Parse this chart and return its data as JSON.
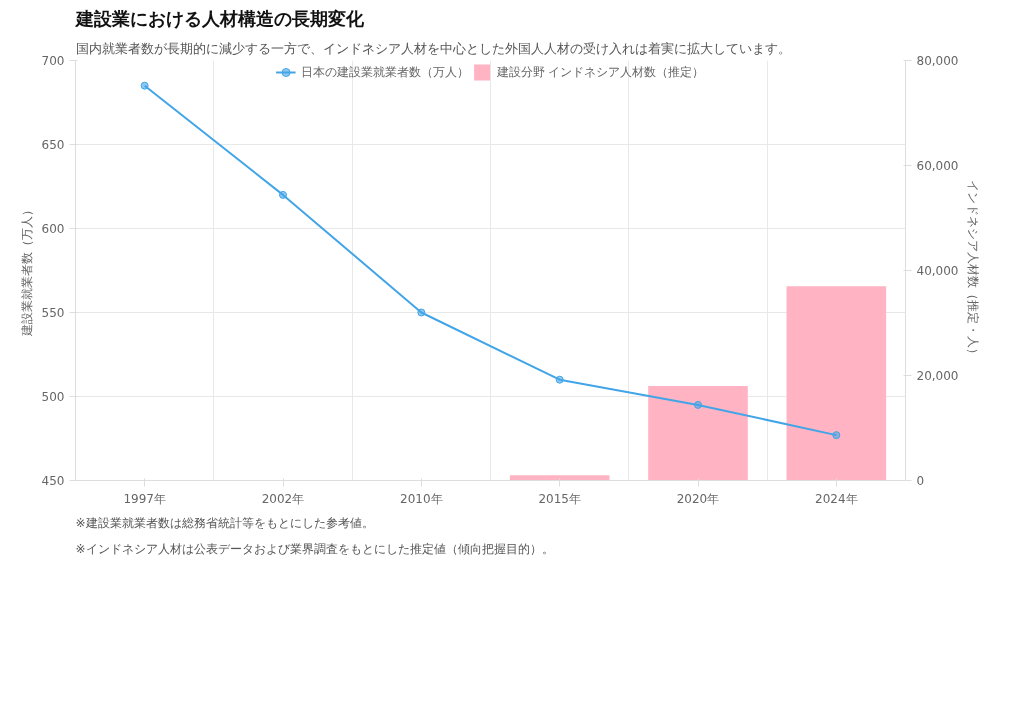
{
  "chart_data": {
    "type": "bar",
    "title": "建設業における人材構造の長期変化",
    "subtitle": "国内就業者数が長期的に減少する一方で、インドネシア人材を中心とした外国人人材の受け入れは着実に拡大しています。",
    "categories": [
      "1997年",
      "2002年",
      "2010年",
      "2015年",
      "2020年",
      "2024年"
    ],
    "series": [
      {
        "name": "日本の建設業就業者数（万人）",
        "type": "line",
        "color": "#42a5e8",
        "values": [
          685,
          620,
          550,
          510,
          495,
          477
        ]
      },
      {
        "name": "建設分野 インドネシア人材数（推定）",
        "axis": "y2",
        "color": "#ffb3c3",
        "values": [
          0,
          0,
          0,
          1000,
          18000,
          37000
        ]
      }
    ],
    "ylabel": "建設業就業者数（万人）",
    "y2label": "インドネシア人材数（推定・人）",
    "ylim": [
      450,
      700
    ],
    "yticks": [
      450,
      500,
      550,
      600,
      650,
      700
    ],
    "y2lim": [
      0,
      80000
    ],
    "y2ticks": [
      {
        "value": 0,
        "label": "0"
      },
      {
        "value": 20000,
        "label": "20,000"
      },
      {
        "value": 40000,
        "label": "40,000"
      },
      {
        "value": 60000,
        "label": "60,000"
      },
      {
        "value": 80000,
        "label": "80,000"
      }
    ],
    "grid": true,
    "legend": "top",
    "marker": "circle",
    "line_style": "solid",
    "annotations": [
      "※建設業就業者数は総務省統計等をもとにした参考値。",
      "※インドネシア人材は公表データおよび業界調査をもとにした推定値（傾向把握目的）。"
    ]
  }
}
